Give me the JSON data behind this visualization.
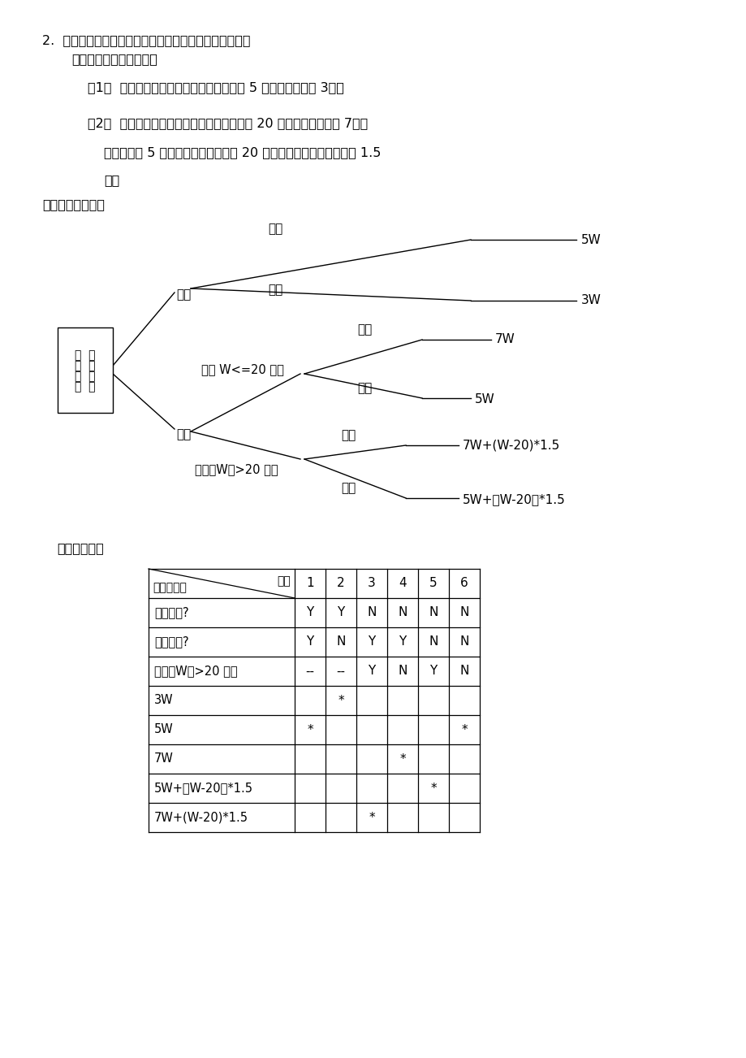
{
  "title_line1": "2.  请将下列决策处理过程用以决策树及决策表表示出来。",
  "title_line2": "鐵路货运收费标准如下：",
  "item1": "（1）  若收货地点在本省以内，快件每公斤 5 元，慢件每公斤 3元。",
  "item2a": "（2）  若收货地点在外省，且重量小于或等于 20 公斤，快件每公斤 7元，",
  "item2b": "慢件每公斤 5 元；反之，若重量大于 20 公斤，超重部分每公斤加收 1.5",
  "item2c": "元。",
  "solution_label": "解：决策树如下：",
  "decision_table_label": "决策表如下：",
  "box_line1": "鐵  路",
  "box_line2": "货  运",
  "box_line3": "收  费",
  "box_line4": "标  准",
  "label_shounei": "省内",
  "label_shouwai": "省外",
  "label_fast": "快件",
  "label_slow": "慢件",
  "label_wle20": "重量 W<=20 公斤",
  "label_wgt20": "重量（W）>20 公斤",
  "result_5w": "5W",
  "result_3w": "3W",
  "result_7w": "7W",
  "result_5w2": "5W",
  "result_7w_formula": "7W+(W-20)*1.5",
  "result_5w_formula": "5W+（W-20）*1.5",
  "table_label_condition": "条件与方案",
  "table_label_combo": "组合",
  "table_cols": [
    "1",
    "2",
    "3",
    "4",
    "5",
    "6"
  ],
  "table_rows": [
    {
      "label": "是否省内?",
      "vals": [
        "Y",
        "Y",
        "N",
        "N",
        "N",
        "N"
      ]
    },
    {
      "label": "是否快件?",
      "vals": [
        "Y",
        "N",
        "Y",
        "Y",
        "N",
        "N"
      ]
    },
    {
      "label": "重量（W）>20 公斤",
      "vals": [
        "--",
        "--",
        "Y",
        "N",
        "Y",
        "N"
      ]
    },
    {
      "label": "3W",
      "vals": [
        "",
        "*",
        "",
        "",
        "",
        ""
      ]
    },
    {
      "label": "5W",
      "vals": [
        "*",
        "",
        "",
        "",
        "",
        "*"
      ]
    },
    {
      "label": "7W",
      "vals": [
        "",
        "",
        "",
        "*",
        "",
        ""
      ]
    },
    {
      "label": "5W+（W-20）*1.5",
      "vals": [
        "",
        "",
        "",
        "",
        "*",
        ""
      ]
    },
    {
      "label": "7W+(W-20)*1.5",
      "vals": [
        "",
        "",
        "*",
        "",
        "",
        ""
      ]
    }
  ],
  "bg_color": "#ffffff"
}
